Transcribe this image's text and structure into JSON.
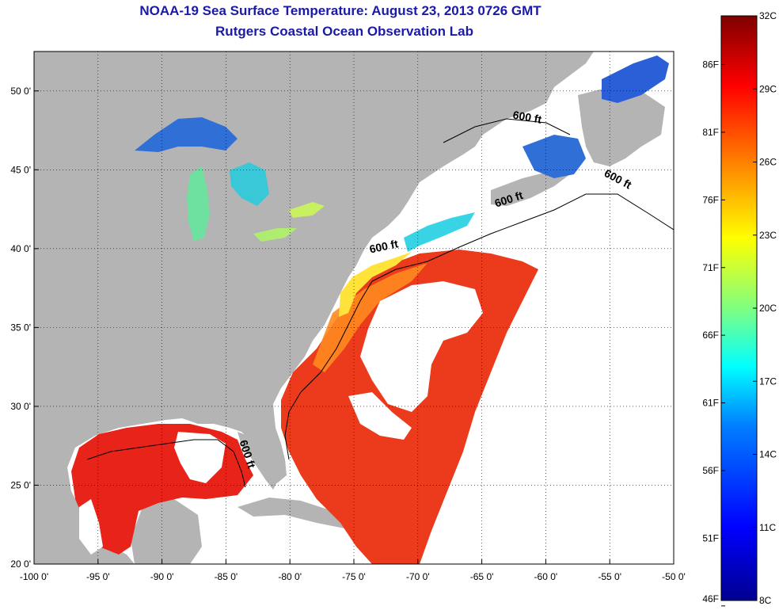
{
  "title": "NOAA-19 Sea Surface Temperature:  August 23, 2013 0726 GMT",
  "subtitle": "Rutgers Coastal Ocean Observation Lab",
  "map": {
    "lon_range": [
      -100,
      -50
    ],
    "lat_range": [
      20,
      52.5
    ],
    "lon_ticks": [
      {
        "value": -100,
        "label": "-100 0'"
      },
      {
        "value": -95,
        "label": "-95 0'"
      },
      {
        "value": -90,
        "label": "-90 0'"
      },
      {
        "value": -85,
        "label": "-85 0'"
      },
      {
        "value": -80,
        "label": "-80 0'"
      },
      {
        "value": -75,
        "label": "-75 0'"
      },
      {
        "value": -70,
        "label": "-70 0'"
      },
      {
        "value": -65,
        "label": "-65 0'"
      },
      {
        "value": -60,
        "label": "-60 0'"
      },
      {
        "value": -55,
        "label": "-55 0'"
      },
      {
        "value": -50,
        "label": "-50 0'"
      }
    ],
    "lat_ticks": [
      {
        "value": 20,
        "label": "20 0'"
      },
      {
        "value": 25,
        "label": "25 0'"
      },
      {
        "value": 30,
        "label": "30 0'"
      },
      {
        "value": 35,
        "label": "35 0'"
      },
      {
        "value": 40,
        "label": "40 0'"
      },
      {
        "value": 45,
        "label": "45 0'"
      },
      {
        "value": 50,
        "label": "50 0'"
      }
    ],
    "grid": true,
    "land_color": "#b4b4b4",
    "cloud_color": "#ffffff",
    "contour_labels": [
      {
        "text": "600 ft",
        "lon": -61.5,
        "lat": 48.1,
        "rotate": 10
      },
      {
        "text": "600 ft",
        "lon": -54.5,
        "lat": 44.2,
        "rotate": 28
      },
      {
        "text": "600 ft",
        "lon": -62.8,
        "lat": 42.9,
        "rotate": -18
      },
      {
        "text": "600 ft",
        "lon": -72.6,
        "lat": 39.9,
        "rotate": -12
      },
      {
        "text": "600 ft",
        "lon": -83.6,
        "lat": 26.9,
        "rotate": 72
      }
    ]
  },
  "colorbar": {
    "celsius_range": [
      8,
      32
    ],
    "celsius_ticks": [
      "32C",
      "29C",
      "26C",
      "23C",
      "20C",
      "17C",
      "14C",
      "11C",
      "8C"
    ],
    "fahrenheit_ticks": [
      "86F",
      "81F",
      "76F",
      "71F",
      "66F",
      "61F",
      "56F",
      "51F",
      "46F"
    ],
    "colors": [
      "#7f0000",
      "#ff0000",
      "#ff8000",
      "#ffff00",
      "#80ff80",
      "#00ffff",
      "#0080ff",
      "#0000ff",
      "#00008f"
    ]
  }
}
